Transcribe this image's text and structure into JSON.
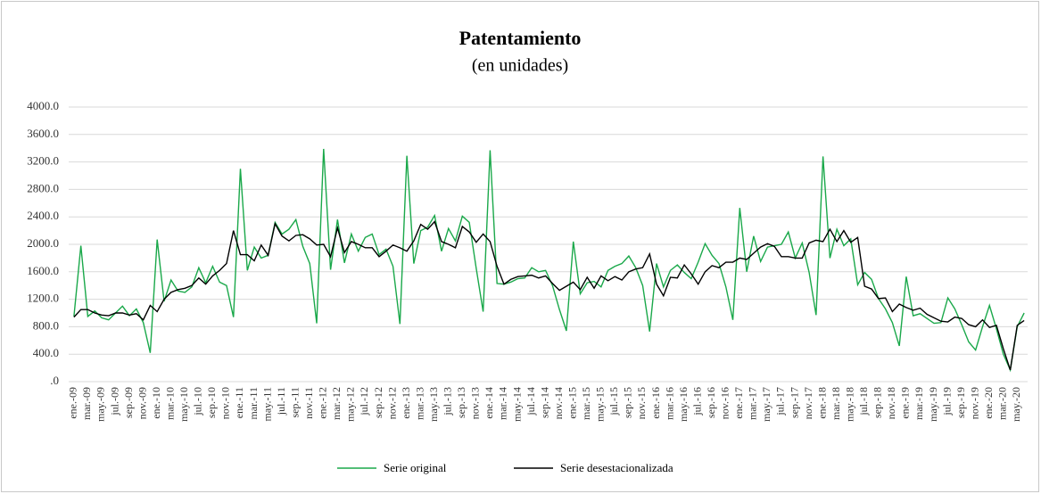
{
  "chart_data": {
    "type": "line",
    "title": "Patentamiento",
    "subtitle": "(en unidades)",
    "categories": [
      "ene.-09",
      null,
      "mar.-09",
      null,
      "may.-09",
      null,
      "jul.-09",
      null,
      "sep.-09",
      null,
      "nov.-09",
      null,
      "ene.-10",
      null,
      "mar.-10",
      null,
      "may.-10",
      null,
      "jul.-10",
      null,
      "sep.-10",
      null,
      "nov.-10",
      null,
      "ene.-11",
      null,
      "mar.-11",
      null,
      "may.-11",
      null,
      "jul.-11",
      null,
      "sep.-11",
      null,
      "nov.-11",
      null,
      "ene.-12",
      null,
      "mar.-12",
      null,
      "may.-12",
      null,
      "jul.-12",
      null,
      "sep.-12",
      null,
      "nov.-12",
      null,
      "ene.-13",
      null,
      "mar.-13",
      null,
      "may.-13",
      null,
      "jul.-13",
      null,
      "sep.-13",
      null,
      "nov.-13",
      null,
      "ene.-14",
      null,
      "mar.-14",
      null,
      "may.-14",
      null,
      "jul.-14",
      null,
      "sep.-14",
      null,
      "nov.-14",
      null,
      "ene.-15",
      null,
      "mar.-15",
      null,
      "may.-15",
      null,
      "jul.-15",
      null,
      "sep.-15",
      null,
      "nov.-15",
      null,
      "ene.-16",
      null,
      "mar.-16",
      null,
      "may.-16",
      null,
      "jul.-16",
      null,
      "sep.-16",
      null,
      "nov.-16",
      null,
      "ene.-17",
      null,
      "mar.-17",
      null,
      "may.-17",
      null,
      "jul.-17",
      null,
      "sep.-17",
      null,
      "nov.-17",
      null,
      "ene.-18",
      null,
      "mar.-18",
      null,
      "may.-18",
      null,
      "jul.-18",
      null,
      "sep.-18",
      null,
      "nov.-18",
      null,
      "ene.-19",
      null,
      "mar.-19",
      null,
      "may.-19",
      null,
      "jul.-19",
      null,
      "sep.-19",
      null,
      "nov.-19",
      null,
      "ene.-20",
      null,
      "mar.-20",
      null,
      "may.-20",
      null
    ],
    "series": [
      {
        "name": "Serie original",
        "color": "#1aa84a",
        "values": [
          950,
          1980,
          950,
          1030,
          930,
          900,
          1000,
          1100,
          960,
          1060,
          860,
          420,
          2070,
          1170,
          1480,
          1320,
          1300,
          1380,
          1660,
          1440,
          1680,
          1450,
          1400,
          940,
          3100,
          1620,
          1960,
          1800,
          1840,
          2320,
          2150,
          2220,
          2360,
          1970,
          1720,
          850,
          3390,
          1630,
          2360,
          1730,
          2150,
          1900,
          2100,
          2150,
          1850,
          1930,
          1680,
          840,
          3290,
          1720,
          2200,
          2250,
          2420,
          1900,
          2230,
          2050,
          2410,
          2320,
          1650,
          1020,
          3370,
          1430,
          1420,
          1450,
          1500,
          1510,
          1660,
          1600,
          1620,
          1400,
          1050,
          740,
          2040,
          1280,
          1440,
          1460,
          1380,
          1620,
          1680,
          1720,
          1830,
          1660,
          1400,
          730,
          1720,
          1380,
          1620,
          1700,
          1590,
          1500,
          1740,
          2010,
          1840,
          1720,
          1380,
          900,
          2530,
          1600,
          2120,
          1750,
          1960,
          1980,
          2000,
          2180,
          1800,
          2020,
          1590,
          970,
          3280,
          1800,
          2220,
          1980,
          2080,
          1410,
          1590,
          1490,
          1210,
          1060,
          860,
          520,
          1530,
          960,
          990,
          920,
          850,
          860,
          1220,
          1060,
          830,
          580,
          460,
          800,
          1110,
          770,
          400,
          170,
          800,
          1000
        ]
      },
      {
        "name": "Serie desestacionalizada",
        "color": "#000000",
        "values": [
          940,
          1050,
          1050,
          1000,
          970,
          960,
          1000,
          1000,
          970,
          990,
          900,
          1110,
          1020,
          1200,
          1300,
          1340,
          1360,
          1400,
          1510,
          1420,
          1540,
          1620,
          1720,
          2200,
          1850,
          1850,
          1760,
          1990,
          1840,
          2300,
          2120,
          2050,
          2130,
          2140,
          2080,
          1990,
          2000,
          1820,
          2240,
          1880,
          2040,
          2000,
          1950,
          1950,
          1820,
          1900,
          1990,
          1950,
          1900,
          2050,
          2290,
          2220,
          2330,
          2040,
          2000,
          1950,
          2260,
          2180,
          2030,
          2150,
          2040,
          1680,
          1420,
          1490,
          1530,
          1540,
          1550,
          1510,
          1540,
          1430,
          1330,
          1390,
          1450,
          1340,
          1520,
          1360,
          1540,
          1470,
          1530,
          1480,
          1600,
          1640,
          1660,
          1860,
          1420,
          1250,
          1520,
          1510,
          1700,
          1570,
          1420,
          1600,
          1690,
          1660,
          1740,
          1740,
          1800,
          1780,
          1870,
          1960,
          2010,
          1970,
          1820,
          1820,
          1800,
          1800,
          2020,
          2060,
          2040,
          2220,
          2040,
          2200,
          2030,
          2100,
          1390,
          1350,
          1210,
          1220,
          1020,
          1130,
          1080,
          1040,
          1070,
          980,
          930,
          880,
          870,
          940,
          920,
          830,
          800,
          900,
          790,
          820,
          480,
          170,
          820,
          890
        ]
      }
    ],
    "ylim": [
      0,
      4000
    ],
    "yticks": [
      {
        "value": 0,
        "label": ".0"
      },
      {
        "value": 400,
        "label": "400.0"
      },
      {
        "value": 800,
        "label": "800.0"
      },
      {
        "value": 1200,
        "label": "1200.0"
      },
      {
        "value": 1600,
        "label": "1600.0"
      },
      {
        "value": 2000,
        "label": "2000.0"
      },
      {
        "value": 2400,
        "label": "2400.0"
      },
      {
        "value": 2800,
        "label": "2800.0"
      },
      {
        "value": 3200,
        "label": "3200.0"
      },
      {
        "value": 3600,
        "label": "3600.0"
      },
      {
        "value": 4000,
        "label": "4000.0"
      }
    ],
    "grid": true
  }
}
